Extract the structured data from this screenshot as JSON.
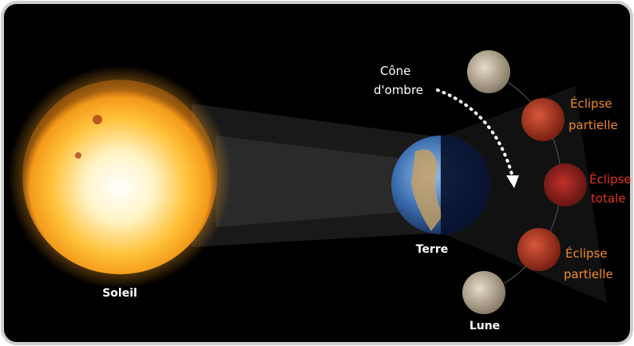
{
  "labels": {
    "cone": [
      "Cône",
      "d'ombre"
    ],
    "eclipse_partial_top": [
      "Éclipse",
      "partielle"
    ],
    "eclipse_total": [
      "Éclipse",
      "totale"
    ],
    "eclipse_partial_bottom": [
      "Éclipse",
      "partielle"
    ],
    "sun": "Soleil",
    "earth": "Terre",
    "moon": "Lune"
  }
}
